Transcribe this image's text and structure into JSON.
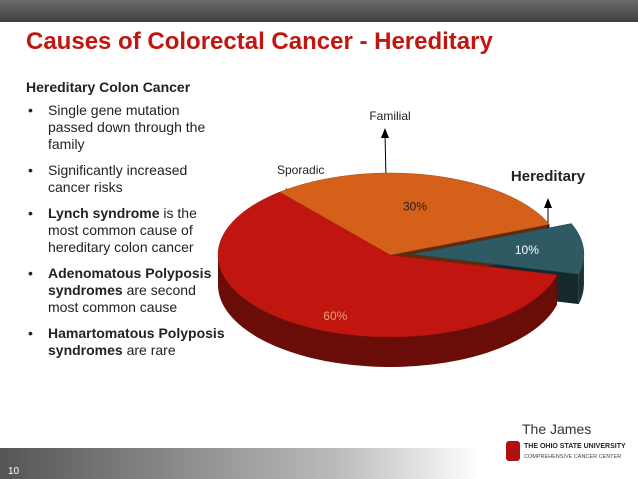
{
  "title": "Causes of Colorectal Cancer - Hereditary",
  "subtitle": "Hereditary Colon Cancer",
  "bullets": [
    [
      {
        "text": "Single gene mutation passed down through the family",
        "bold": false
      }
    ],
    [
      {
        "text": "Significantly increased cancer risks",
        "bold": false
      }
    ],
    [
      {
        "text": "Lynch syndrome",
        "bold": true
      },
      {
        "text": " is the most common cause of hereditary colon cancer",
        "bold": false
      }
    ],
    [
      {
        "text": "Adenomatous Polyposis syndromes",
        "bold": true
      },
      {
        "text": " are second most common cause",
        "bold": false
      }
    ],
    [
      {
        "text": "Hamartomatous Polyposis syndromes",
        "bold": true
      },
      {
        "text": " are rare",
        "bold": false
      }
    ]
  ],
  "chart_data": {
    "type": "pie",
    "categories": [
      "Sporadic",
      "Familial",
      "Hereditary"
    ],
    "values": [
      60,
      30,
      10
    ],
    "value_labels": [
      "60%",
      "30%",
      "10%"
    ],
    "colors": [
      "#c0160f",
      "#d5601a",
      "#2e5b63"
    ]
  },
  "footer": {
    "brand": "The James",
    "university": "The Ohio State University",
    "center": "Comprehensive Cancer Center",
    "slide_number": "10"
  }
}
